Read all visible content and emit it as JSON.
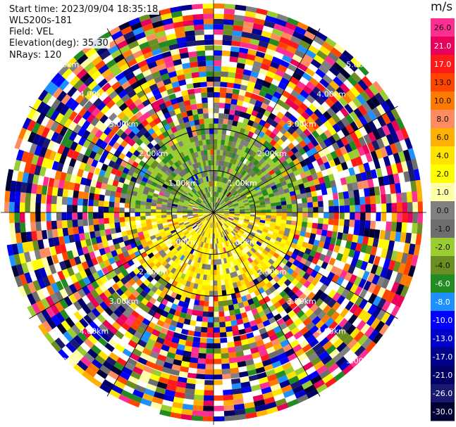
{
  "header": {
    "start_time": "Start time: 2023/09/04 18:35:18",
    "instrument": "WLS200s-181",
    "field": "Field: VEL",
    "elevation": "Elevation(deg): 35.30",
    "nrays": "NRays: 120"
  },
  "colorbar": {
    "unit": "m/s",
    "labels": [
      "26.0",
      "21.0",
      "17.0",
      "13.0",
      "10.0",
      "8.0",
      "6.0",
      "4.0",
      "2.0",
      "1.0",
      "0.0",
      "-1.0",
      "-2.0",
      "-4.0",
      "-6.0",
      "-8.0",
      "-10.0",
      "-13.0",
      "-17.0",
      "-21.0",
      "-26.0",
      "-30.0"
    ],
    "colors": [
      "#ff2f92",
      "#e8005a",
      "#ff1a1a",
      "#ff4400",
      "#ff7a00",
      "#ff8c60",
      "#ffb000",
      "#ffe400",
      "#ffff00",
      "#ffffaa",
      "#808080",
      "#6e6e6e",
      "#9acd32",
      "#6b8e23",
      "#228b22",
      "#1e90ff",
      "#0000ff",
      "#0000cd",
      "#00008b",
      "#000066",
      "#191970",
      "#000033"
    ]
  },
  "chart_data": {
    "type": "heatmap",
    "title": "",
    "field": "VEL",
    "rays": 120,
    "range_rings_km": [
      1,
      2,
      3,
      4,
      5
    ],
    "ring_labels": [
      "1.00km",
      "2.00km",
      "3.00km",
      "4.00km",
      "5.00km"
    ],
    "near_field": {
      "north_half": "mostly -1 to -4 m/s (olive/green) with grey 0 m/s patches",
      "south_half": "mostly +2 to +4 m/s (yellow)",
      "extent_km": 2.2
    },
    "far_field": "noise: random multicolour velocities beyond about 2.3 km",
    "value_range": [
      -30,
      26
    ]
  }
}
